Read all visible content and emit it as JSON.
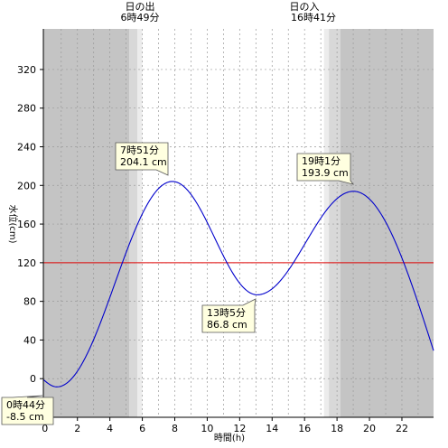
{
  "colors": {
    "night": "#c4c4c4",
    "twilight": "#d8d8d8",
    "twilight_inner": "#ececec",
    "day": "#ffffff",
    "grid": "#9a9a9a",
    "curve": "#0000cc",
    "reference_line": "#dd0000",
    "callout_bg": "#ffffe0"
  },
  "chart_data": {
    "type": "line",
    "xlabel": "時間(h)",
    "ylabel": "水位(cm)",
    "xlim": [
      -0.1,
      23.95
    ],
    "ylim": [
      -40,
      362
    ],
    "x_ticks": [
      0,
      2,
      4,
      6,
      8,
      10,
      12,
      14,
      16,
      18,
      20,
      22
    ],
    "y_ticks": [
      0,
      40,
      80,
      120,
      160,
      200,
      240,
      280,
      320
    ],
    "grid": true,
    "reference_line": {
      "y": 120
    },
    "sun": {
      "sunrise": {
        "label": "日の出",
        "time": "6時49分",
        "hour": 6.817
      },
      "sunset": {
        "label": "日の入",
        "time": "16時41分",
        "hour": 16.683
      },
      "shade_bands": [
        {
          "from": -0.1,
          "to": 5.2,
          "tone": "night"
        },
        {
          "from": 5.2,
          "to": 5.7,
          "tone": "twilight"
        },
        {
          "from": 5.7,
          "to": 6.0,
          "tone": "twilight_inner"
        },
        {
          "from": 6.0,
          "to": 17.2,
          "tone": "day"
        },
        {
          "from": 17.2,
          "to": 17.5,
          "tone": "twilight_inner"
        },
        {
          "from": 17.5,
          "to": 18.2,
          "tone": "twilight"
        },
        {
          "from": 18.2,
          "to": 23.95,
          "tone": "night"
        }
      ]
    },
    "extremes": [
      {
        "hour": 0.733,
        "value": -8.5,
        "time": "0時44分",
        "level": "-8.5 cm",
        "kind": "low"
      },
      {
        "hour": 7.85,
        "value": 204.1,
        "time": "7時51分",
        "level": "204.1 cm",
        "kind": "high"
      },
      {
        "hour": 13.083,
        "value": 86.8,
        "time": "13時5分",
        "level": "86.8 cm",
        "kind": "low"
      },
      {
        "hour": 19.017,
        "value": 193.9,
        "time": "19時1分",
        "level": "193.9 cm",
        "kind": "high"
      }
    ],
    "series": [
      {
        "x": [
          -0.1,
          23.95
        ],
        "start_value": -1.0,
        "end_value": 29.0
      }
    ]
  }
}
